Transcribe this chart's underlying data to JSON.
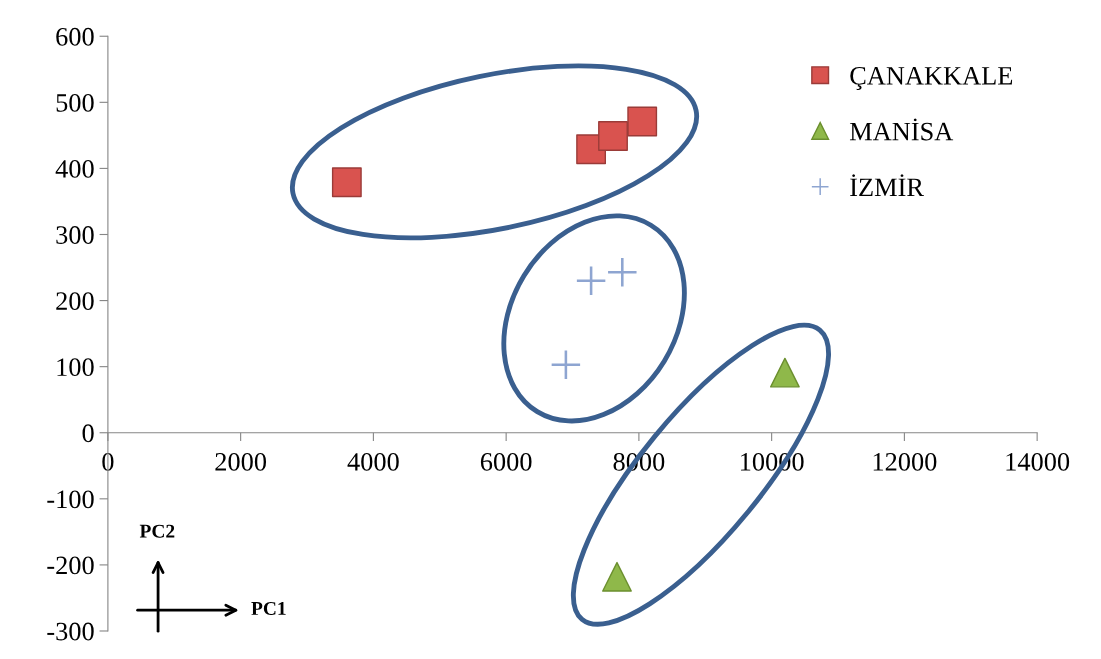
{
  "chart_data": {
    "type": "scatter",
    "series": [
      {
        "name": "ÇANAKKALE",
        "color": "#d9534f",
        "marker": "square",
        "x": [
          3600,
          7280,
          7610,
          8050
        ],
        "values": [
          379,
          429,
          449,
          471
        ]
      },
      {
        "name": "MANİSA",
        "color": "#8fb84a",
        "marker": "triangle",
        "x": [
          10200,
          7670
        ],
        "values": [
          91,
          -218
        ]
      },
      {
        "name": "İZMİR",
        "color": "#8ea5d1",
        "marker": "cross",
        "x": [
          7280,
          7750,
          6900
        ],
        "values": [
          230,
          243,
          103
        ]
      }
    ],
    "xlim": [
      0,
      14000
    ],
    "xticks": [
      0,
      2000,
      4000,
      6000,
      8000,
      10000,
      12000,
      14000
    ],
    "ylim": [
      -300,
      600
    ],
    "yticks": [
      -300,
      -200,
      -100,
      0,
      100,
      200,
      300,
      400,
      500,
      600
    ],
    "grid": false,
    "legend": "top right",
    "annotations": [
      "PC2",
      "PC1"
    ]
  }
}
